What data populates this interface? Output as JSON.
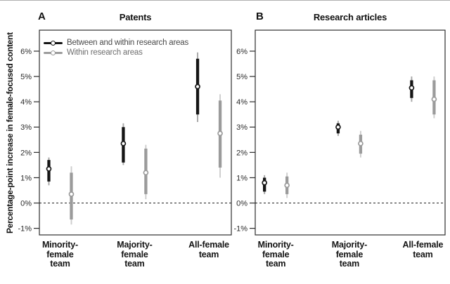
{
  "chart_data": {
    "type": "errorbar",
    "description": "Point estimates with inner (thick) and outer (thin) confidence intervals, two panels sharing one y-axis",
    "ylabel": "Percentage-point increase in female-focused content",
    "ylim": [
      -1.26,
      6.83
    ],
    "yticks": [
      {
        "value": 6,
        "label": "6%"
      },
      {
        "value": 5,
        "label": "5%"
      },
      {
        "value": 4,
        "label": "4%"
      },
      {
        "value": 3,
        "label": "3%"
      },
      {
        "value": 2,
        "label": "2%"
      },
      {
        "value": 1,
        "label": "1%"
      },
      {
        "value": 0,
        "label": "0%"
      },
      {
        "value": -1,
        "label": "-1%"
      }
    ],
    "zero_reference_line": {
      "value": 0,
      "style": "dashed",
      "color": "#1a1a1a"
    },
    "grid": "off",
    "legend_position": "top-left inside panel A",
    "categories": [
      [
        "Minority-",
        "female",
        "team"
      ],
      [
        "Majority-",
        "female",
        "team"
      ],
      [
        "All-female",
        "team"
      ]
    ],
    "series": [
      {
        "name": "Between and within research areas",
        "color": "#151515",
        "outer_ci_color": "#a6a6a6"
      },
      {
        "name": "Within research areas",
        "color": "#9b9b9b",
        "outer_ci_color": "#cdcdcd"
      }
    ],
    "panels": [
      {
        "label": "A",
        "title": "Patents",
        "points": [
          [
            {
              "category": "Minority-female team",
              "estimate": 1.35,
              "inner_ci": [
                0.85,
                1.7
              ],
              "outer_ci": [
                0.7,
                1.8
              ]
            },
            {
              "category": "Majority-female team",
              "estimate": 2.35,
              "inner_ci": [
                1.6,
                3.0
              ],
              "outer_ci": [
                1.5,
                3.15
              ]
            },
            {
              "category": "All-female team",
              "estimate": 4.6,
              "inner_ci": [
                3.5,
                5.7
              ],
              "outer_ci": [
                3.2,
                5.95
              ]
            }
          ],
          [
            {
              "category": "Minority-female team",
              "estimate": 0.35,
              "inner_ci": [
                -0.65,
                1.2
              ],
              "outer_ci": [
                -0.85,
                1.45
              ]
            },
            {
              "category": "Majority-female team",
              "estimate": 1.2,
              "inner_ci": [
                0.35,
                2.15
              ],
              "outer_ci": [
                0.15,
                2.3
              ]
            },
            {
              "category": "All-female team",
              "estimate": 2.75,
              "inner_ci": [
                1.4,
                4.05
              ],
              "outer_ci": [
                1.0,
                4.3
              ]
            }
          ]
        ]
      },
      {
        "label": "B",
        "title": "Research articles",
        "points": [
          [
            {
              "category": "Minority-female team",
              "estimate": 0.8,
              "inner_ci": [
                0.45,
                1.0
              ],
              "outer_ci": [
                0.35,
                1.1
              ]
            },
            {
              "category": "Majority-female team",
              "estimate": 3.0,
              "inner_ci": [
                2.75,
                3.15
              ],
              "outer_ci": [
                2.65,
                3.25
              ]
            },
            {
              "category": "All-female team",
              "estimate": 4.55,
              "inner_ci": [
                4.15,
                4.85
              ],
              "outer_ci": [
                4.0,
                5.0
              ]
            }
          ],
          [
            {
              "category": "Minority-female team",
              "estimate": 0.7,
              "inner_ci": [
                0.35,
                1.05
              ],
              "outer_ci": [
                0.2,
                1.2
              ]
            },
            {
              "category": "Majority-female team",
              "estimate": 2.35,
              "inner_ci": [
                1.95,
                2.7
              ],
              "outer_ci": [
                1.8,
                2.85
              ]
            },
            {
              "category": "All-female team",
              "estimate": 4.1,
              "inner_ci": [
                3.5,
                4.85
              ],
              "outer_ci": [
                3.35,
                5.0
              ]
            }
          ]
        ]
      }
    ]
  }
}
